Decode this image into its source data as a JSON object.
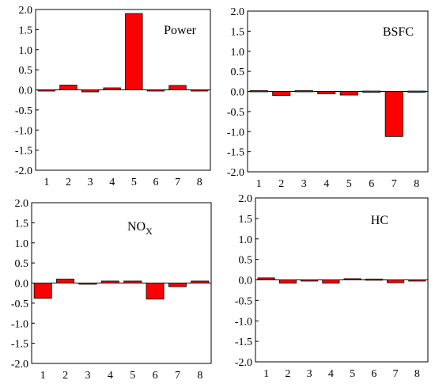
{
  "chart_data": [
    {
      "type": "bar",
      "title": "Power",
      "categories": [
        "1",
        "2",
        "3",
        "4",
        "5",
        "6",
        "7",
        "8"
      ],
      "values": [
        -0.01,
        0.12,
        -0.05,
        0.05,
        1.9,
        -0.01,
        0.11,
        -0.01
      ],
      "ylim": [
        -2.0,
        2.0
      ],
      "yticks": [
        "2.0",
        "1.5",
        "1.0",
        "0.5",
        "0.0",
        "-0.5",
        "-1.0",
        "-1.5",
        "-2.0"
      ],
      "bar_color": "#ff0000",
      "bar_edge": "#000000"
    },
    {
      "type": "bar",
      "title": "BSFC",
      "categories": [
        "1",
        "2",
        "3",
        "4",
        "5",
        "6",
        "7",
        "8"
      ],
      "values": [
        0.02,
        -0.1,
        0.02,
        -0.06,
        -0.09,
        0.01,
        -1.12,
        0.01
      ],
      "ylim": [
        -2.0,
        2.0
      ],
      "yticks": [
        "2.0",
        "1.5",
        "1.0",
        "0.5",
        "0.0",
        "-0.5",
        "-1.0",
        "-1.5",
        "-2.0"
      ],
      "bar_color": "#ff0000",
      "bar_edge": "#000000"
    },
    {
      "type": "bar",
      "title": "NO",
      "title_subscript": "X",
      "categories": [
        "1",
        "2",
        "3",
        "4",
        "5",
        "6",
        "7",
        "8"
      ],
      "values": [
        -0.38,
        0.1,
        0.0,
        0.05,
        0.05,
        -0.4,
        -0.09,
        0.05
      ],
      "ylim": [
        -2.0,
        2.0
      ],
      "yticks": [
        "2.0",
        "1.5",
        "1.0",
        "0.5",
        "0.0",
        "-0.5",
        "-1.0",
        "-1.5",
        "-2.0"
      ],
      "bar_color": "#ff0000",
      "bar_edge": "#000000"
    },
    {
      "type": "bar",
      "title": "HC",
      "categories": [
        "1",
        "2",
        "3",
        "4",
        "5",
        "6",
        "7",
        "8"
      ],
      "values": [
        0.05,
        -0.08,
        0.0,
        -0.08,
        0.03,
        0.02,
        -0.07,
        0.0
      ],
      "ylim": [
        -2.0,
        2.0
      ],
      "yticks": [
        "2.0",
        "1.5",
        "1.0",
        "0.5",
        "0.0",
        "-0.5",
        "-1.0",
        "-1.5",
        "-2.0"
      ],
      "bar_color": "#ff0000",
      "bar_edge": "#000000"
    }
  ]
}
